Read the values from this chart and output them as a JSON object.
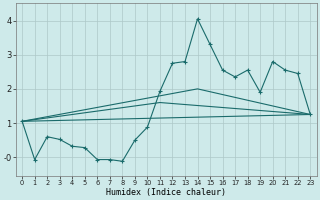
{
  "xlabel": "Humidex (Indice chaleur)",
  "background_color": "#ceeaea",
  "grid_color": "#adc8c8",
  "line_color": "#1a6b6b",
  "xlim": [
    -0.5,
    23.5
  ],
  "ylim": [
    -0.55,
    4.5
  ],
  "yticks": [
    0,
    1,
    2,
    3,
    4
  ],
  "ytick_labels": [
    "-0",
    "1",
    "2",
    "3",
    "4"
  ],
  "line1_x": [
    0,
    1,
    2,
    3,
    4,
    5,
    6,
    7,
    8,
    9,
    10,
    11,
    12,
    13,
    14,
    15,
    16,
    17,
    18,
    19,
    20,
    21,
    22,
    23
  ],
  "line1_y": [
    1.05,
    -0.07,
    0.6,
    0.52,
    0.32,
    0.28,
    -0.07,
    -0.07,
    -0.12,
    0.5,
    0.88,
    1.93,
    2.75,
    2.8,
    4.05,
    3.3,
    2.55,
    2.35,
    2.55,
    1.9,
    2.8,
    2.55,
    2.45,
    1.25
  ],
  "line2_x": [
    0,
    23
  ],
  "line2_y": [
    1.05,
    1.25
  ],
  "line3_x": [
    0,
    14,
    23
  ],
  "line3_y": [
    1.05,
    2.0,
    1.25
  ],
  "line4_x": [
    0,
    11,
    23
  ],
  "line4_y": [
    1.05,
    1.6,
    1.25
  ],
  "xtick_labels": [
    "0",
    "1",
    "2",
    "3",
    "4",
    "5",
    "6",
    "7",
    "8",
    "9",
    "10",
    "11",
    "12",
    "13",
    "14",
    "15",
    "16",
    "17",
    "18",
    "19",
    "20",
    "21",
    "22",
    "23"
  ]
}
